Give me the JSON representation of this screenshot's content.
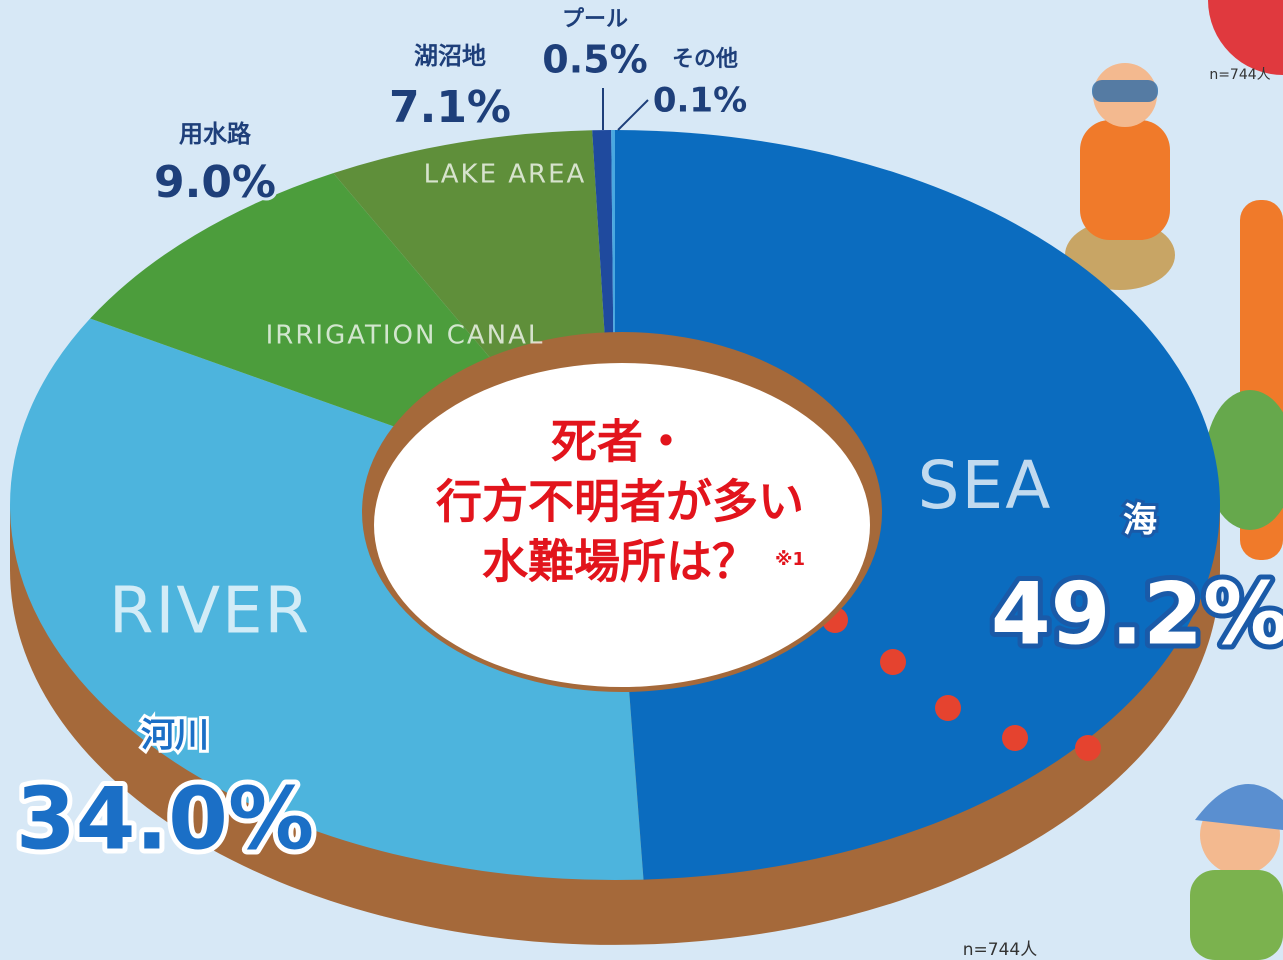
{
  "chart_data": {
    "type": "pie",
    "title": [
      "死者・",
      "行方不明者が多い",
      "水難場所は？"
    ],
    "title_note": "※1",
    "note": "n=744人",
    "categories": [
      "海",
      "河川",
      "用水路",
      "湖沼地",
      "プール",
      "その他"
    ],
    "values": [
      49.2,
      34.0,
      9.0,
      7.1,
      0.5,
      0.1
    ],
    "value_labels": [
      "49.2%",
      "34.0%",
      "9.0%",
      "7.1%",
      "0.5%",
      "0.1%"
    ],
    "segment_titles": [
      "SEA",
      "RIVER",
      "IRRIGATION CANAL",
      "LAKE AREA",
      null,
      null
    ],
    "colors": [
      "#0b6cbf",
      "#4db4dd",
      "#4c9d3c",
      "#5f8f3a",
      "#1f4a9e",
      "#4aa8e0"
    ]
  }
}
